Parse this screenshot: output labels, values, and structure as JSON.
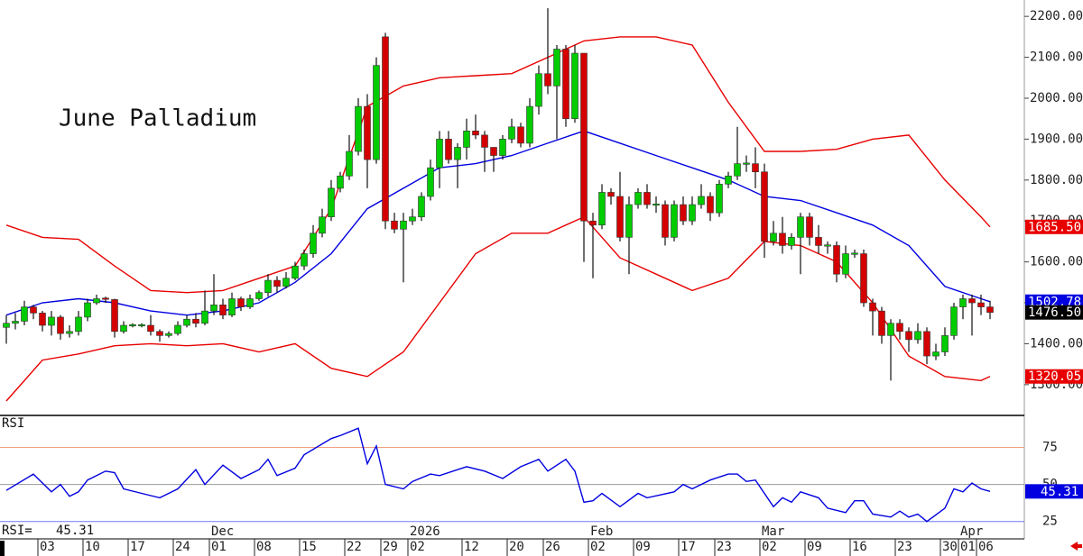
{
  "chart_data": [
    {
      "type": "candlestick",
      "title": "June Palladium",
      "x": [
        1,
        2,
        3,
        4,
        5,
        6,
        7,
        8,
        9,
        10,
        11,
        12,
        13,
        14,
        15,
        16,
        17,
        18,
        19,
        20,
        21,
        22,
        23,
        24,
        25,
        26,
        27,
        28,
        29,
        30,
        31,
        32,
        33,
        34,
        35,
        36,
        37,
        38,
        39,
        40,
        41,
        42,
        43,
        44,
        45,
        46,
        47,
        48,
        49,
        50,
        51,
        52,
        53,
        54,
        55,
        56,
        57,
        58,
        59,
        60,
        61,
        62,
        63,
        64,
        65,
        66,
        67,
        68,
        69,
        70,
        71,
        72,
        73,
        74,
        75,
        76,
        77,
        78,
        79,
        80,
        81,
        82,
        83,
        84,
        85,
        86,
        87,
        88,
        89,
        90,
        91,
        92,
        93,
        94,
        95,
        96,
        97,
        98,
        99,
        100,
        101,
        102,
        103,
        104,
        105,
        106,
        107,
        108,
        109,
        110
      ],
      "open": [
        1440,
        1450,
        1455,
        1490,
        1475,
        1445,
        1465,
        1425,
        1430,
        1465,
        1500,
        1510,
        1508,
        1430,
        1445,
        1445,
        1445,
        1430,
        1420,
        1425,
        1445,
        1460,
        1450,
        1480,
        1495,
        1470,
        1510,
        1490,
        1510,
        1525,
        1555,
        1540,
        1560,
        1590,
        1620,
        1670,
        1710,
        1780,
        1810,
        1870,
        1980,
        1850,
        2150,
        1700,
        1680,
        1700,
        1710,
        1760,
        1830,
        1900,
        1850,
        1880,
        1920,
        1910,
        1880,
        1860,
        1900,
        1930,
        1890,
        1980,
        2060,
        2030,
        2120,
        1950,
        2110,
        1700,
        1690,
        1770,
        1760,
        1660,
        1740,
        1770,
        1740,
        1740,
        1660,
        1740,
        1700,
        1740,
        1760,
        1720,
        1790,
        1810,
        1840,
        1840,
        1820,
        1650,
        1670,
        1640,
        1660,
        1710,
        1660,
        1640,
        1640,
        1570,
        1620,
        1620,
        1500,
        1480,
        1420,
        1450,
        1430,
        1410,
        1430,
        1370,
        1380,
        1420,
        1490,
        1510,
        1500,
        1490
      ],
      "high": [
        1470,
        1475,
        1505,
        1495,
        1480,
        1480,
        1470,
        1445,
        1480,
        1510,
        1520,
        1515,
        1510,
        1455,
        1450,
        1450,
        1470,
        1435,
        1430,
        1455,
        1470,
        1475,
        1530,
        1570,
        1510,
        1525,
        1515,
        1520,
        1530,
        1570,
        1565,
        1575,
        1600,
        1630,
        1690,
        1730,
        1800,
        1820,
        1910,
        2000,
        2010,
        2100,
        2160,
        1720,
        1720,
        1730,
        1770,
        1850,
        1920,
        1920,
        1890,
        1950,
        1960,
        1920,
        1880,
        1910,
        1950,
        1940,
        2000,
        2080,
        2220,
        2130,
        2130,
        2130,
        2110,
        1720,
        1790,
        1780,
        1820,
        1760,
        1780,
        1790,
        1760,
        1750,
        1750,
        1760,
        1760,
        1790,
        1770,
        1800,
        1820,
        1930,
        1860,
        1880,
        1840,
        1700,
        1710,
        1670,
        1720,
        1720,
        1690,
        1650,
        1650,
        1640,
        1630,
        1630,
        1510,
        1490,
        1460,
        1460,
        1440,
        1450,
        1440,
        1400,
        1440,
        1500,
        1520,
        1520,
        1520,
        1505
      ],
      "low": [
        1400,
        1435,
        1445,
        1460,
        1430,
        1420,
        1410,
        1415,
        1420,
        1455,
        1495,
        1500,
        1415,
        1425,
        1440,
        1440,
        1420,
        1405,
        1415,
        1420,
        1440,
        1440,
        1445,
        1470,
        1460,
        1465,
        1480,
        1485,
        1505,
        1515,
        1525,
        1535,
        1555,
        1580,
        1610,
        1660,
        1700,
        1770,
        1800,
        1860,
        1780,
        1840,
        1680,
        1670,
        1550,
        1690,
        1700,
        1750,
        1780,
        1840,
        1780,
        1850,
        1900,
        1820,
        1820,
        1850,
        1890,
        1880,
        1880,
        1960,
        2010,
        1900,
        1930,
        1940,
        1600,
        1560,
        1680,
        1740,
        1650,
        1570,
        1730,
        1730,
        1720,
        1640,
        1650,
        1690,
        1690,
        1730,
        1700,
        1710,
        1780,
        1800,
        1820,
        1780,
        1610,
        1640,
        1620,
        1630,
        1570,
        1640,
        1620,
        1620,
        1550,
        1560,
        1610,
        1490,
        1420,
        1400,
        1310,
        1410,
        1380,
        1400,
        1350,
        1360,
        1370,
        1410,
        1460,
        1420,
        1470,
        1460
      ],
      "close": [
        1450,
        1455,
        1490,
        1475,
        1445,
        1465,
        1425,
        1430,
        1465,
        1500,
        1510,
        1508,
        1430,
        1445,
        1445,
        1445,
        1430,
        1420,
        1425,
        1445,
        1460,
        1450,
        1480,
        1495,
        1470,
        1510,
        1490,
        1510,
        1525,
        1555,
        1540,
        1560,
        1590,
        1620,
        1670,
        1710,
        1780,
        1810,
        1870,
        1980,
        1850,
        2080,
        1700,
        1680,
        1700,
        1710,
        1760,
        1830,
        1900,
        1850,
        1880,
        1920,
        1910,
        1880,
        1860,
        1900,
        1930,
        1890,
        1980,
        2060,
        2030,
        2120,
        1950,
        2110,
        1700,
        1690,
        1770,
        1760,
        1660,
        1740,
        1770,
        1740,
        1740,
        1660,
        1740,
        1700,
        1740,
        1760,
        1720,
        1790,
        1810,
        1840,
        1840,
        1820,
        1650,
        1670,
        1640,
        1660,
        1710,
        1660,
        1640,
        1640,
        1570,
        1620,
        1620,
        1500,
        1480,
        1420,
        1450,
        1430,
        1410,
        1430,
        1370,
        1380,
        1420,
        1490,
        1510,
        1500,
        1490,
        1476.5
      ],
      "close_label": "1476.50",
      "up_color": "#00cc00",
      "down_color": "#d40000",
      "band_x": [
        1,
        5,
        9,
        13,
        17,
        21,
        25,
        29,
        33,
        37,
        41,
        45,
        49,
        53,
        57,
        61,
        65,
        69,
        73,
        77,
        81,
        85,
        89,
        93,
        97,
        101,
        105,
        109,
        110
      ],
      "bands": [
        {
          "color": "#e80000",
          "values": [
            1690,
            1660,
            1655,
            1590,
            1530,
            1525,
            1530,
            1560,
            1590,
            1730,
            1980,
            2030,
            2050,
            2055,
            2060,
            2100,
            2140,
            2150,
            2150,
            2130,
            1990,
            1870,
            1870,
            1875,
            1900,
            1910,
            1800,
            1710,
            1685.5
          ],
          "last_label": "1685.50"
        },
        {
          "color": "#0000e0",
          "values": [
            1470,
            1500,
            1510,
            1500,
            1480,
            1470,
            1480,
            1500,
            1550,
            1620,
            1730,
            1780,
            1830,
            1840,
            1860,
            1890,
            1920,
            1890,
            1860,
            1830,
            1800,
            1760,
            1750,
            1720,
            1690,
            1640,
            1540,
            1510,
            1502.78
          ],
          "last_label": "1502.78"
        },
        {
          "color": "#e80000",
          "values": [
            1260,
            1360,
            1375,
            1395,
            1400,
            1395,
            1400,
            1380,
            1400,
            1340,
            1320,
            1380,
            1500,
            1620,
            1670,
            1670,
            1710,
            1610,
            1570,
            1530,
            1560,
            1650,
            1640,
            1600,
            1500,
            1370,
            1320,
            1310,
            1320.05
          ],
          "last_label": "1320.05"
        }
      ],
      "xlim": [
        0.3,
        113.8
      ],
      "ylim": [
        1227,
        2240
      ],
      "yticks": [
        {
          "value": 2200,
          "label": "2200.00"
        },
        {
          "value": 2100,
          "label": "2100.00"
        },
        {
          "value": 2000,
          "label": "2000.00"
        },
        {
          "value": 1900,
          "label": "1900.00"
        },
        {
          "value": 1800,
          "label": "1800.00"
        },
        {
          "value": 1700,
          "label": "1700.00"
        },
        {
          "value": 1600,
          "label": "1600.00"
        },
        {
          "value": 1500,
          "label": "1500.00"
        },
        {
          "value": 1400,
          "label": "1400.00"
        },
        {
          "value": 1300,
          "label": "1300.00"
        }
      ],
      "xticks": [
        {
          "value": 5,
          "label": "03"
        },
        {
          "value": 10,
          "label": "10"
        },
        {
          "value": 15,
          "label": "17"
        },
        {
          "value": 20,
          "label": "24"
        },
        {
          "value": 24,
          "label": "01"
        },
        {
          "value": 29,
          "label": "08"
        },
        {
          "value": 34,
          "label": "15"
        },
        {
          "value": 39,
          "label": "22"
        },
        {
          "value": 43,
          "label": "29"
        },
        {
          "value": 46,
          "label": "02"
        },
        {
          "value": 52,
          "label": "12"
        },
        {
          "value": 57,
          "label": "20"
        },
        {
          "value": 61,
          "label": "26"
        },
        {
          "value": 66,
          "label": "02"
        },
        {
          "value": 71,
          "label": "09"
        },
        {
          "value": 76,
          "label": "17"
        },
        {
          "value": 80,
          "label": "23"
        },
        {
          "value": 85,
          "label": "02"
        },
        {
          "value": 90,
          "label": "09"
        },
        {
          "value": 95,
          "label": "16"
        },
        {
          "value": 100,
          "label": "23"
        },
        {
          "value": 105,
          "label": "30"
        },
        {
          "value": 107,
          "label": "01"
        },
        {
          "value": 109,
          "label": "06"
        }
      ],
      "month_ticks": [
        {
          "value": 24,
          "label": "Dec"
        },
        {
          "value": 46,
          "label": "2026"
        },
        {
          "value": 66,
          "label": "Feb"
        },
        {
          "value": 85,
          "label": "Mar"
        },
        {
          "value": 107,
          "label": "Apr"
        }
      ]
    },
    {
      "type": "line",
      "title": "RSI",
      "readout": "RSI=",
      "series": [
        {
          "color": "#0000e0",
          "x": [
            1,
            4,
            6,
            7,
            8,
            9,
            10,
            12,
            13,
            14,
            16,
            18,
            20,
            22,
            23,
            25,
            27,
            29,
            30,
            31,
            33,
            34,
            37,
            38,
            40,
            41,
            42,
            43,
            45,
            46,
            48,
            49,
            52,
            54,
            56,
            58,
            60,
            61,
            63,
            64,
            65,
            66,
            67,
            69,
            71,
            72,
            75,
            76,
            77,
            79,
            81,
            82,
            83,
            84,
            86,
            87,
            88,
            89,
            91,
            92,
            94,
            95,
            96,
            97,
            99,
            100,
            101,
            102,
            103,
            105,
            106,
            107,
            108,
            109,
            110
          ],
          "values": [
            46,
            57,
            45,
            50,
            42,
            45,
            53,
            59,
            58,
            47,
            44,
            41,
            47,
            60,
            50,
            63,
            54,
            60,
            67,
            56,
            61,
            70,
            81,
            83,
            88,
            64,
            76,
            50,
            47,
            52,
            57,
            56,
            62,
            59,
            54,
            62,
            67,
            59,
            67,
            59,
            38,
            39,
            44,
            35,
            44,
            41,
            45,
            50,
            47,
            53,
            57,
            57,
            52,
            53,
            35,
            41,
            38,
            45,
            41,
            34,
            31,
            39,
            39,
            30,
            28,
            32,
            28,
            30,
            25,
            34,
            47,
            45,
            51,
            47,
            45.31
          ],
          "last_label": "45.31"
        }
      ],
      "ylim": [
        23,
        96
      ],
      "yticks": [
        25,
        50,
        75
      ],
      "ytick_colors": [
        "#6a78ff",
        "#9a9a9a",
        "#f0a080"
      ]
    }
  ]
}
